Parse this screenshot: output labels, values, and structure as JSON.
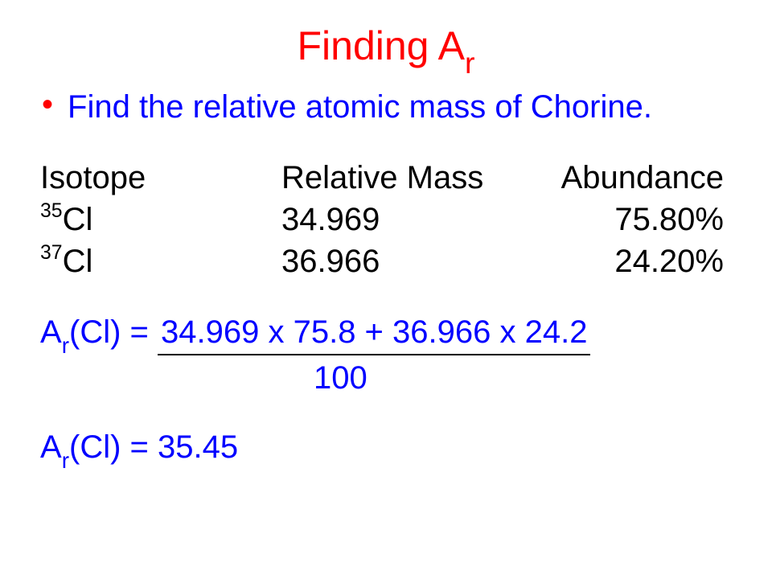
{
  "title": {
    "prefix": "Finding A",
    "sub": "r"
  },
  "bullet": {
    "text": "Find the relative atomic mass of Chorine."
  },
  "table": {
    "headers": {
      "isotope": "Isotope",
      "mass": "Relative Mass",
      "abundance": "Abundance"
    },
    "rows": [
      {
        "sup": "35",
        "el": "Cl",
        "mass": "34.969",
        "abundance": "75.80%"
      },
      {
        "sup": "37",
        "el": "Cl",
        "mass": "36.966",
        "abundance": "24.20%"
      }
    ]
  },
  "calc": {
    "lhs_prefix": "A",
    "lhs_sub": "r",
    "lhs_suffix": "(Cl) = ",
    "numerator": "34.969 x 75.8 +  36.966 x 24.2",
    "denominator": "100"
  },
  "result": {
    "prefix": "A",
    "sub": "r",
    "suffix": "(Cl) = 35.45"
  },
  "colors": {
    "title": "#ff0000",
    "bullet_dot": "#ff0000",
    "bullet_text": "#0000ff",
    "body": "#000000",
    "calc": "#0000ff",
    "background": "#ffffff"
  }
}
